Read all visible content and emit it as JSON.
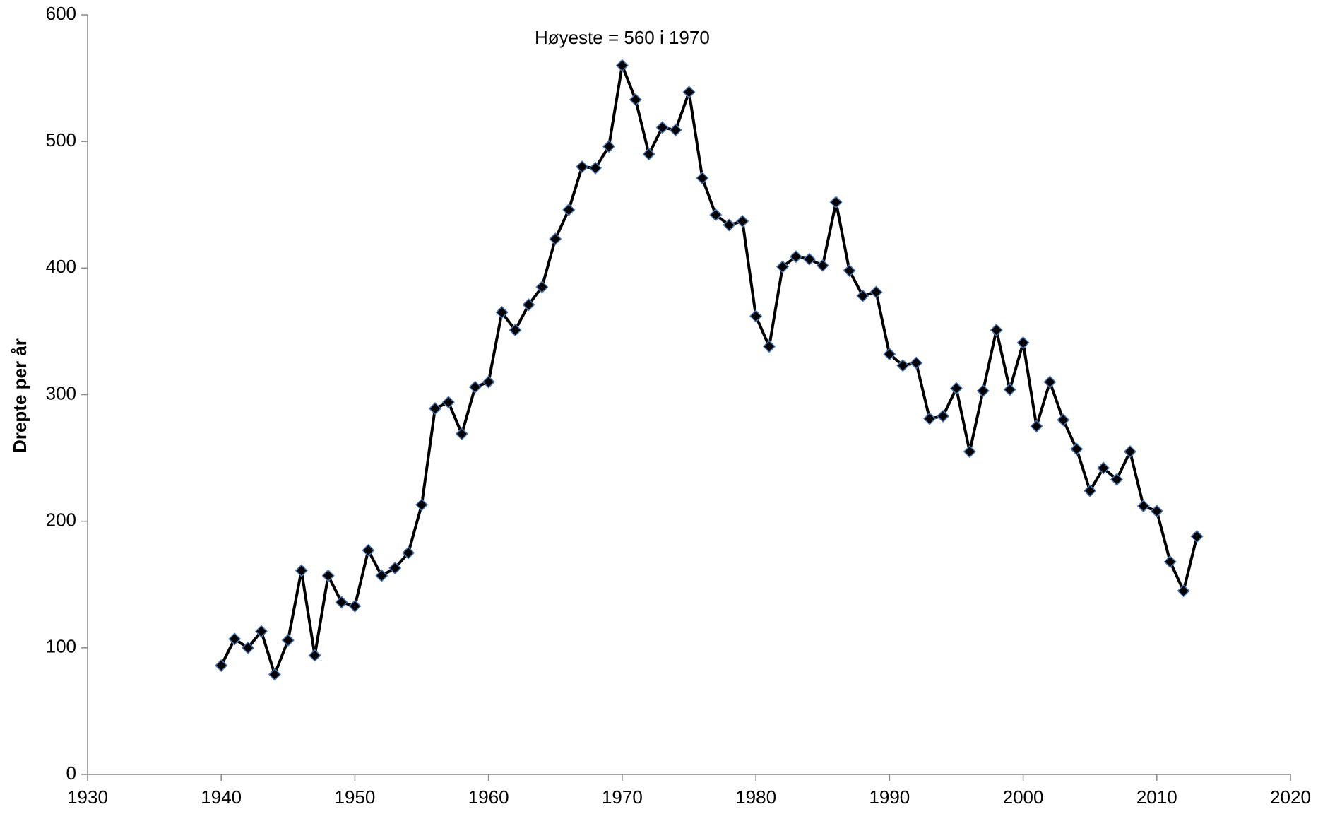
{
  "chart_data": {
    "type": "line",
    "y_label": "Drepte per år",
    "annotation": "Høyeste = 560 i 1970",
    "x": [
      1940,
      1941,
      1942,
      1943,
      1944,
      1945,
      1946,
      1947,
      1948,
      1949,
      1950,
      1951,
      1952,
      1953,
      1954,
      1955,
      1956,
      1957,
      1958,
      1959,
      1960,
      1961,
      1962,
      1963,
      1964,
      1965,
      1966,
      1967,
      1968,
      1969,
      1970,
      1971,
      1972,
      1973,
      1974,
      1975,
      1976,
      1977,
      1978,
      1979,
      1980,
      1981,
      1982,
      1983,
      1984,
      1985,
      1986,
      1987,
      1988,
      1989,
      1990,
      1991,
      1992,
      1993,
      1994,
      1995,
      1996,
      1997,
      1998,
      1999,
      2000,
      2001,
      2002,
      2003,
      2004,
      2005,
      2006,
      2007,
      2008,
      2009,
      2010,
      2011,
      2012,
      2013
    ],
    "series": [
      {
        "color": "#000000",
        "values": [
          86,
          107,
          100,
          113,
          79,
          106,
          161,
          94,
          157,
          136,
          133,
          177,
          157,
          163,
          175,
          213,
          289,
          294,
          269,
          306,
          310,
          365,
          351,
          371,
          385,
          423,
          446,
          480,
          479,
          496,
          560,
          533,
          490,
          511,
          509,
          539,
          471,
          442,
          434,
          437,
          362,
          338,
          401,
          409,
          407,
          402,
          452,
          398,
          378,
          381,
          332,
          323,
          325,
          281,
          283,
          305,
          255,
          303,
          351,
          304,
          341,
          275,
          310,
          280,
          257,
          224,
          242,
          233,
          255,
          212,
          208,
          168,
          145,
          188
        ]
      }
    ],
    "xlim": [
      1930,
      2020
    ],
    "xticks": [
      1930,
      1940,
      1950,
      1960,
      1970,
      1980,
      1990,
      2000,
      2010,
      2020
    ],
    "ylim": [
      0,
      600
    ],
    "yticks": [
      0,
      100,
      200,
      300,
      400,
      500,
      600
    ]
  }
}
